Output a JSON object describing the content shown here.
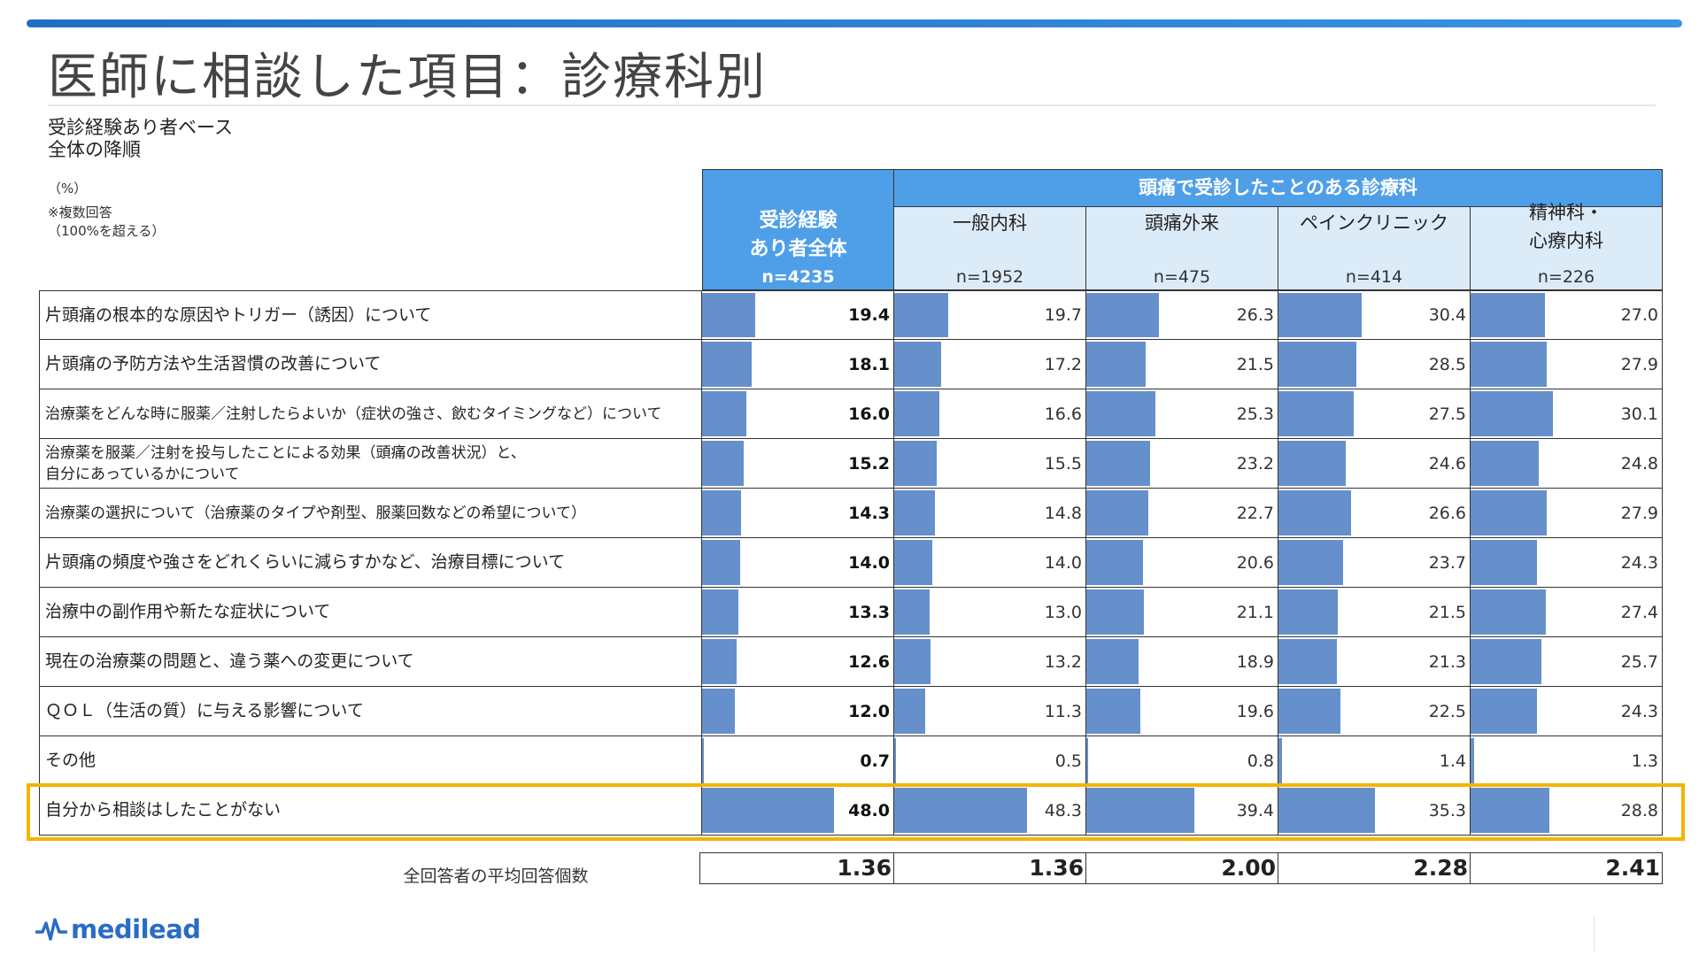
{
  "title": "医師に相談した項目：診療科別",
  "notes": {
    "base": "受診経験あり者ベース",
    "order": "全体の降順",
    "unit": "（%）",
    "multi1": "※複数回答",
    "multi2": "（100%を超える）"
  },
  "header": {
    "group_label": "頭痛で受診したことのある診療科"
  },
  "columns": [
    {
      "label": "受診経験\nあり者全体",
      "n": "n=4235"
    },
    {
      "label": "一般内科",
      "n": "n=1952"
    },
    {
      "label": "頭痛外来",
      "n": "n=475"
    },
    {
      "label": "ペインクリニック",
      "n": "n=414"
    },
    {
      "label": "精神科・\n心療内科",
      "n": "n=226"
    }
  ],
  "rows": [
    {
      "label": "片頭痛の根本的な原因やトリガー（誘因）について",
      "values": [
        "19.4",
        "19.7",
        "26.3",
        "30.4",
        "27.0"
      ]
    },
    {
      "label": "片頭痛の予防方法や生活習慣の改善について",
      "values": [
        "18.1",
        "17.2",
        "21.5",
        "28.5",
        "27.9"
      ]
    },
    {
      "label": "治療薬をどんな時に服薬／注射したらよいか（症状の強さ、飲むタイミングなど）について",
      "values": [
        "16.0",
        "16.6",
        "25.3",
        "27.5",
        "30.1"
      ]
    },
    {
      "label": "治療薬を服薬／注射を投与したことによる効果（頭痛の改善状況）と、\n自分にあっているかについて",
      "values": [
        "15.2",
        "15.5",
        "23.2",
        "24.6",
        "24.8"
      ]
    },
    {
      "label": "治療薬の選択について（治療薬のタイプや剤型、服薬回数などの希望について）",
      "values": [
        "14.3",
        "14.8",
        "22.7",
        "26.6",
        "27.9"
      ]
    },
    {
      "label": "片頭痛の頻度や強さをどれくらいに減らすかなど、治療目標について",
      "values": [
        "14.0",
        "14.0",
        "20.6",
        "23.7",
        "24.3"
      ]
    },
    {
      "label": "治療中の副作用や新たな症状について",
      "values": [
        "13.3",
        "13.0",
        "21.1",
        "21.5",
        "27.4"
      ]
    },
    {
      "label": "現在の治療薬の問題と、違う薬への変更について",
      "values": [
        "12.6",
        "13.2",
        "18.9",
        "21.3",
        "25.7"
      ]
    },
    {
      "label": "ＱＯＬ（生活の質）に与える影響について",
      "values": [
        "12.0",
        "11.3",
        "19.6",
        "22.5",
        "24.3"
      ]
    },
    {
      "label": "その他",
      "values": [
        "0.7",
        "0.5",
        "0.8",
        "1.4",
        "1.3"
      ]
    },
    {
      "label": "自分から相談はしたことがない",
      "values": [
        "48.0",
        "48.3",
        "39.4",
        "35.3",
        "28.8"
      ]
    }
  ],
  "average": {
    "label": "全回答者の平均回答個数",
    "values": [
      "1.36",
      "1.36",
      "2.00",
      "2.28",
      "2.41"
    ]
  },
  "logo": {
    "text": "medilead"
  },
  "colors": {
    "header": "#4f9fe8",
    "subheader": "#dcebf8",
    "bar": "#6590cc",
    "highlight": "#f5b400"
  },
  "chart_data": {
    "type": "table",
    "title": "医師に相談した項目：診療科別",
    "unit": "%",
    "categories": [
      "片頭痛の根本的な原因やトリガー（誘因）について",
      "片頭痛の予防方法や生活習慣の改善について",
      "治療薬をどんな時に服薬／注射したらよいか（症状の強さ、飲むタイミングなど）について",
      "治療薬を服薬／注射を投与したことによる効果（頭痛の改善状況）と、自分にあっているかについて",
      "治療薬の選択について（治療薬のタイプや剤型、服薬回数などの希望について）",
      "片頭痛の頻度や強さをどれくらいに減らすかなど、治療目標について",
      "治療中の副作用や新たな症状について",
      "現在の治療薬の問題と、違う薬への変更について",
      "ＱＯＬ（生活の質）に与える影響について",
      "その他",
      "自分から相談はしたことがない"
    ],
    "series": [
      {
        "name": "受診経験あり者全体",
        "values": [
          19.4,
          18.1,
          16.0,
          15.2,
          14.3,
          14.0,
          13.3,
          12.6,
          12.0,
          0.7,
          48.0
        ]
      },
      {
        "name": "一般内科",
        "values": [
          19.7,
          17.2,
          16.6,
          15.5,
          14.8,
          14.0,
          13.0,
          13.2,
          11.3,
          0.5,
          48.3
        ]
      },
      {
        "name": "頭痛外来",
        "values": [
          26.3,
          21.5,
          25.3,
          23.2,
          22.7,
          20.6,
          21.1,
          18.9,
          19.6,
          0.8,
          39.4
        ]
      },
      {
        "name": "ペインクリニック",
        "values": [
          30.4,
          28.5,
          27.5,
          24.6,
          26.6,
          23.7,
          21.5,
          21.3,
          22.5,
          1.4,
          35.3
        ]
      },
      {
        "name": "精神科・心療内科",
        "values": [
          27.0,
          27.9,
          30.1,
          24.8,
          27.9,
          24.3,
          27.4,
          25.7,
          24.3,
          1.3,
          28.8
        ]
      }
    ],
    "bar_scale_max": 70
  }
}
